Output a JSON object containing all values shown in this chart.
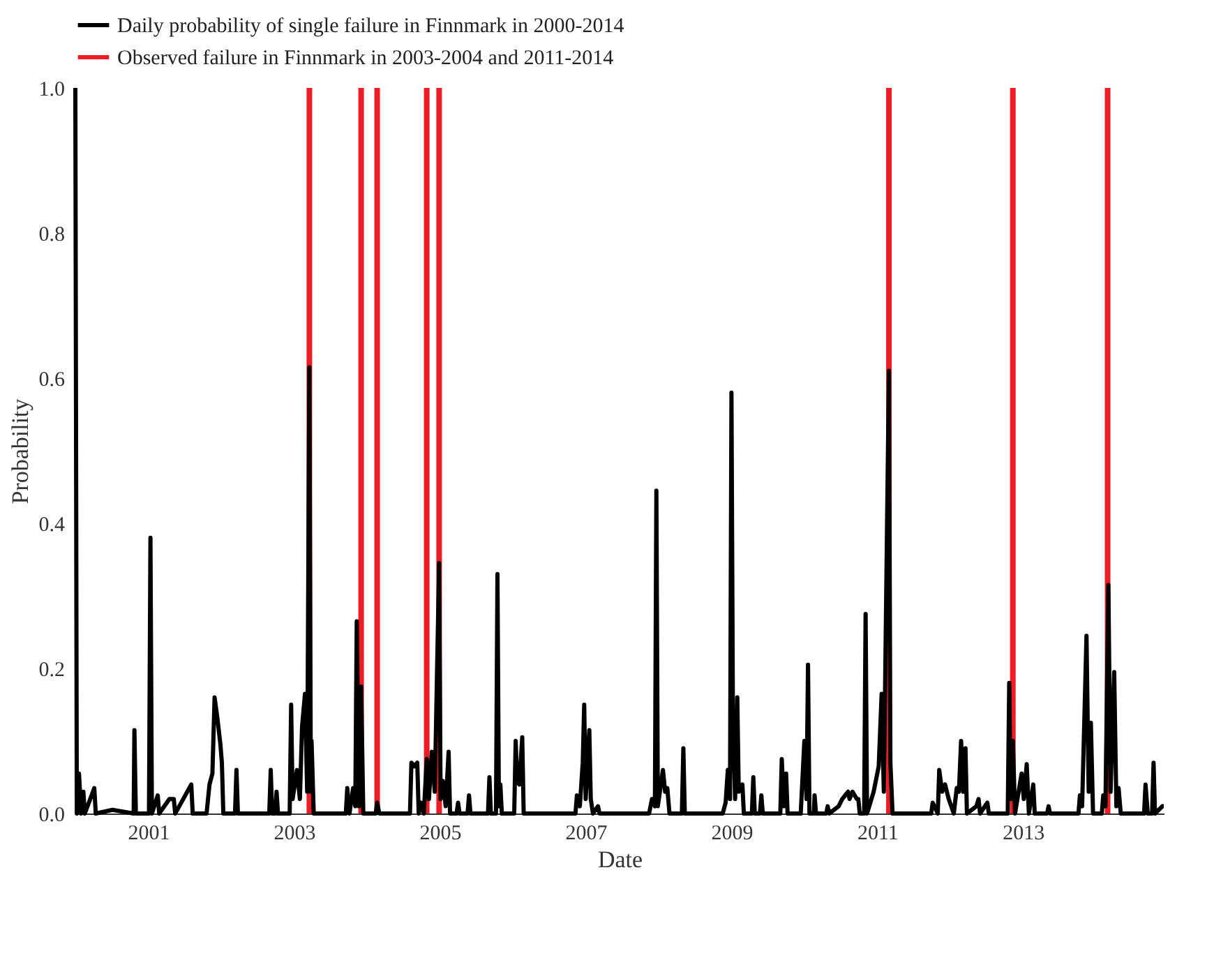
{
  "chart_data": {
    "type": "line",
    "xlabel": "Date",
    "ylabel": "Probability",
    "legend": "top left",
    "xlim": [
      2000,
      2014.93
    ],
    "xticks": [
      2001,
      2003,
      2005,
      2007,
      2009,
      2011,
      2013
    ],
    "ylim": [
      0,
      1.0
    ],
    "yticks": [
      {
        "value": 0,
        "label": "0.0"
      },
      {
        "value": 0.2,
        "label": "0.2"
      },
      {
        "value": 0.4,
        "label": "0.4"
      },
      {
        "value": 0.6,
        "label": "0.6"
      },
      {
        "value": 0.8,
        "label": "0.8"
      },
      {
        "value": 1.0,
        "label": "1.0"
      }
    ],
    "series": [
      {
        "name": "Daily probability of single failure in Finnmark in 2000-2014",
        "color": "#000000",
        "x": [
          2000.0,
          2000.02,
          2000.05,
          2000.08,
          2000.11,
          2000.13,
          2000.26,
          2000.28,
          2000.51,
          2000.8,
          2000.81,
          2000.83,
          2001.01,
          2001.03,
          2001.05,
          2001.13,
          2001.15,
          2001.29,
          2001.35,
          2001.37,
          2001.59,
          2001.61,
          2001.8,
          2001.84,
          2001.88,
          2001.91,
          2001.95,
          2001.99,
          2002.01,
          2002.03,
          2002.19,
          2002.21,
          2002.23,
          2002.66,
          2002.68,
          2002.7,
          2002.74,
          2002.76,
          2002.78,
          2002.94,
          2002.96,
          2002.98,
          2003.04,
          2003.08,
          2003.11,
          2003.15,
          2003.18,
          2003.21,
          2003.23,
          2003.24,
          2003.27,
          2003.71,
          2003.73,
          2003.76,
          2003.81,
          2003.84,
          2003.86,
          2003.89,
          2003.92,
          2003.95,
          2004.12,
          2004.14,
          2004.17,
          2004.59,
          2004.61,
          2004.65,
          2004.69,
          2004.71,
          2004.74,
          2004.78,
          2004.82,
          2004.85,
          2004.89,
          2004.93,
          2004.99,
          2005.01,
          2005.04,
          2005.08,
          2005.12,
          2005.14,
          2005.23,
          2005.25,
          2005.27,
          2005.38,
          2005.4,
          2005.42,
          2005.66,
          2005.68,
          2005.7,
          2005.77,
          2005.79,
          2005.81,
          2005.83,
          2005.85,
          2006.02,
          2006.04,
          2006.06,
          2006.09,
          2006.13,
          2006.15,
          2006.86,
          2006.88,
          2006.92,
          2006.96,
          2006.98,
          2007.0,
          2007.05,
          2007.07,
          2007.1,
          2007.17,
          2007.19,
          2007.87,
          2007.91,
          2007.95,
          2007.97,
          2007.99,
          2008.06,
          2008.09,
          2008.12,
          2008.15,
          2008.32,
          2008.34,
          2008.36,
          2008.88,
          2008.92,
          2008.95,
          2008.98,
          2009.0,
          2009.02,
          2009.05,
          2009.08,
          2009.1,
          2009.15,
          2009.17,
          2009.28,
          2009.3,
          2009.32,
          2009.39,
          2009.41,
          2009.43,
          2009.67,
          2009.69,
          2009.72,
          2009.75,
          2009.77,
          2009.95,
          2009.97,
          2010.0,
          2010.03,
          2010.05,
          2010.07,
          2010.13,
          2010.14,
          2010.16,
          2010.3,
          2010.32,
          2010.34,
          2010.47,
          2010.52,
          2010.56,
          2010.6,
          2010.62,
          2010.66,
          2010.72,
          2010.74,
          2010.76,
          2010.82,
          2010.84,
          2010.86,
          2010.95,
          2011.02,
          2011.06,
          2011.09,
          2011.16,
          2011.18,
          2011.21,
          2011.74,
          2011.76,
          2011.83,
          2011.85,
          2011.89,
          2011.93,
          2011.98,
          2012.05,
          2012.09,
          2012.12,
          2012.15,
          2012.18,
          2012.21,
          2012.23,
          2012.36,
          2012.39,
          2012.41,
          2012.51,
          2012.53,
          2012.79,
          2012.81,
          2012.83,
          2012.86,
          2012.89,
          2012.98,
          2013.01,
          2013.05,
          2013.08,
          2013.14,
          2013.16,
          2013.33,
          2013.35,
          2013.37,
          2013.76,
          2013.78,
          2013.81,
          2013.87,
          2013.9,
          2013.93,
          2013.96,
          2014.08,
          2014.1,
          2014.13,
          2014.17,
          2014.2,
          2014.25,
          2014.28,
          2014.31,
          2014.34,
          2014.66,
          2014.68,
          2014.71,
          2014.77,
          2014.79,
          2014.81,
          2014.91,
          2014.93
        ],
        "values": [
          1.0,
          0.0,
          0.055,
          0.0,
          0.03,
          0.0,
          0.035,
          0.0,
          0.005,
          0.0,
          0.115,
          0.0,
          0.0,
          0.38,
          0.0,
          0.025,
          0.0,
          0.02,
          0.02,
          0.0,
          0.04,
          0.0,
          0.0,
          0.04,
          0.055,
          0.16,
          0.13,
          0.095,
          0.07,
          0.0,
          0.0,
          0.06,
          0.0,
          0.0,
          0.06,
          0.0,
          0.0,
          0.03,
          0.0,
          0.0,
          0.15,
          0.02,
          0.06,
          0.02,
          0.12,
          0.165,
          0.03,
          0.615,
          0.03,
          0.1,
          0.0,
          0.0,
          0.035,
          0.0,
          0.035,
          0.01,
          0.265,
          0.01,
          0.175,
          0.0,
          0.0,
          0.015,
          0.0,
          0.0,
          0.07,
          0.065,
          0.07,
          0.0,
          0.015,
          0.0,
          0.075,
          0.02,
          0.085,
          0.03,
          0.345,
          0.02,
          0.045,
          0.01,
          0.085,
          0.0,
          0.0,
          0.015,
          0.0,
          0.0,
          0.025,
          0.0,
          0.0,
          0.05,
          0.0,
          0.0,
          0.33,
          0.01,
          0.04,
          0.0,
          0.0,
          0.1,
          0.045,
          0.04,
          0.105,
          0.0,
          0.0,
          0.025,
          0.01,
          0.07,
          0.15,
          0.02,
          0.115,
          0.02,
          0.0,
          0.01,
          0.0,
          0.0,
          0.02,
          0.01,
          0.445,
          0.01,
          0.06,
          0.03,
          0.035,
          0.0,
          0.0,
          0.09,
          0.0,
          0.0,
          0.015,
          0.06,
          0.02,
          0.58,
          0.13,
          0.02,
          0.16,
          0.03,
          0.04,
          0.0,
          0.0,
          0.05,
          0.0,
          0.0,
          0.025,
          0.0,
          0.0,
          0.075,
          0.01,
          0.055,
          0.0,
          0.0,
          0.04,
          0.1,
          0.02,
          0.205,
          0.0,
          0.0,
          0.025,
          0.0,
          0.0,
          0.01,
          0.0,
          0.01,
          0.02,
          0.025,
          0.03,
          0.02,
          0.03,
          0.02,
          0.02,
          0.0,
          0.0,
          0.275,
          0.0,
          0.03,
          0.065,
          0.165,
          0.03,
          0.61,
          0.07,
          0.0,
          0.0,
          0.015,
          0.0,
          0.06,
          0.03,
          0.04,
          0.02,
          0.0,
          0.035,
          0.03,
          0.1,
          0.03,
          0.09,
          0.0,
          0.01,
          0.02,
          0.0,
          0.015,
          0.0,
          0.0,
          0.18,
          0.02,
          0.1,
          0.0,
          0.055,
          0.02,
          0.068,
          0.0,
          0.04,
          0.0,
          0.0,
          0.01,
          0.0,
          0.0,
          0.025,
          0.01,
          0.245,
          0.03,
          0.125,
          0.0,
          0.0,
          0.025,
          0.01,
          0.315,
          0.03,
          0.195,
          0.01,
          0.035,
          0.0,
          0.0,
          0.04,
          0.0,
          0.0,
          0.07,
          0.0,
          0.01,
          0.01
        ]
      },
      {
        "name": "Observed failure in Finnmark in 2003-2004 and 2011-2014",
        "color": "#ee1c25",
        "type": "bar",
        "x": [
          2003.21,
          2003.92,
          2004.14,
          2004.82,
          2004.99,
          2011.16,
          2012.86,
          2014.16
        ],
        "values": [
          1.0,
          1.0,
          1.0,
          1.0,
          1.0,
          1.0,
          1.0,
          1.0
        ]
      }
    ]
  }
}
